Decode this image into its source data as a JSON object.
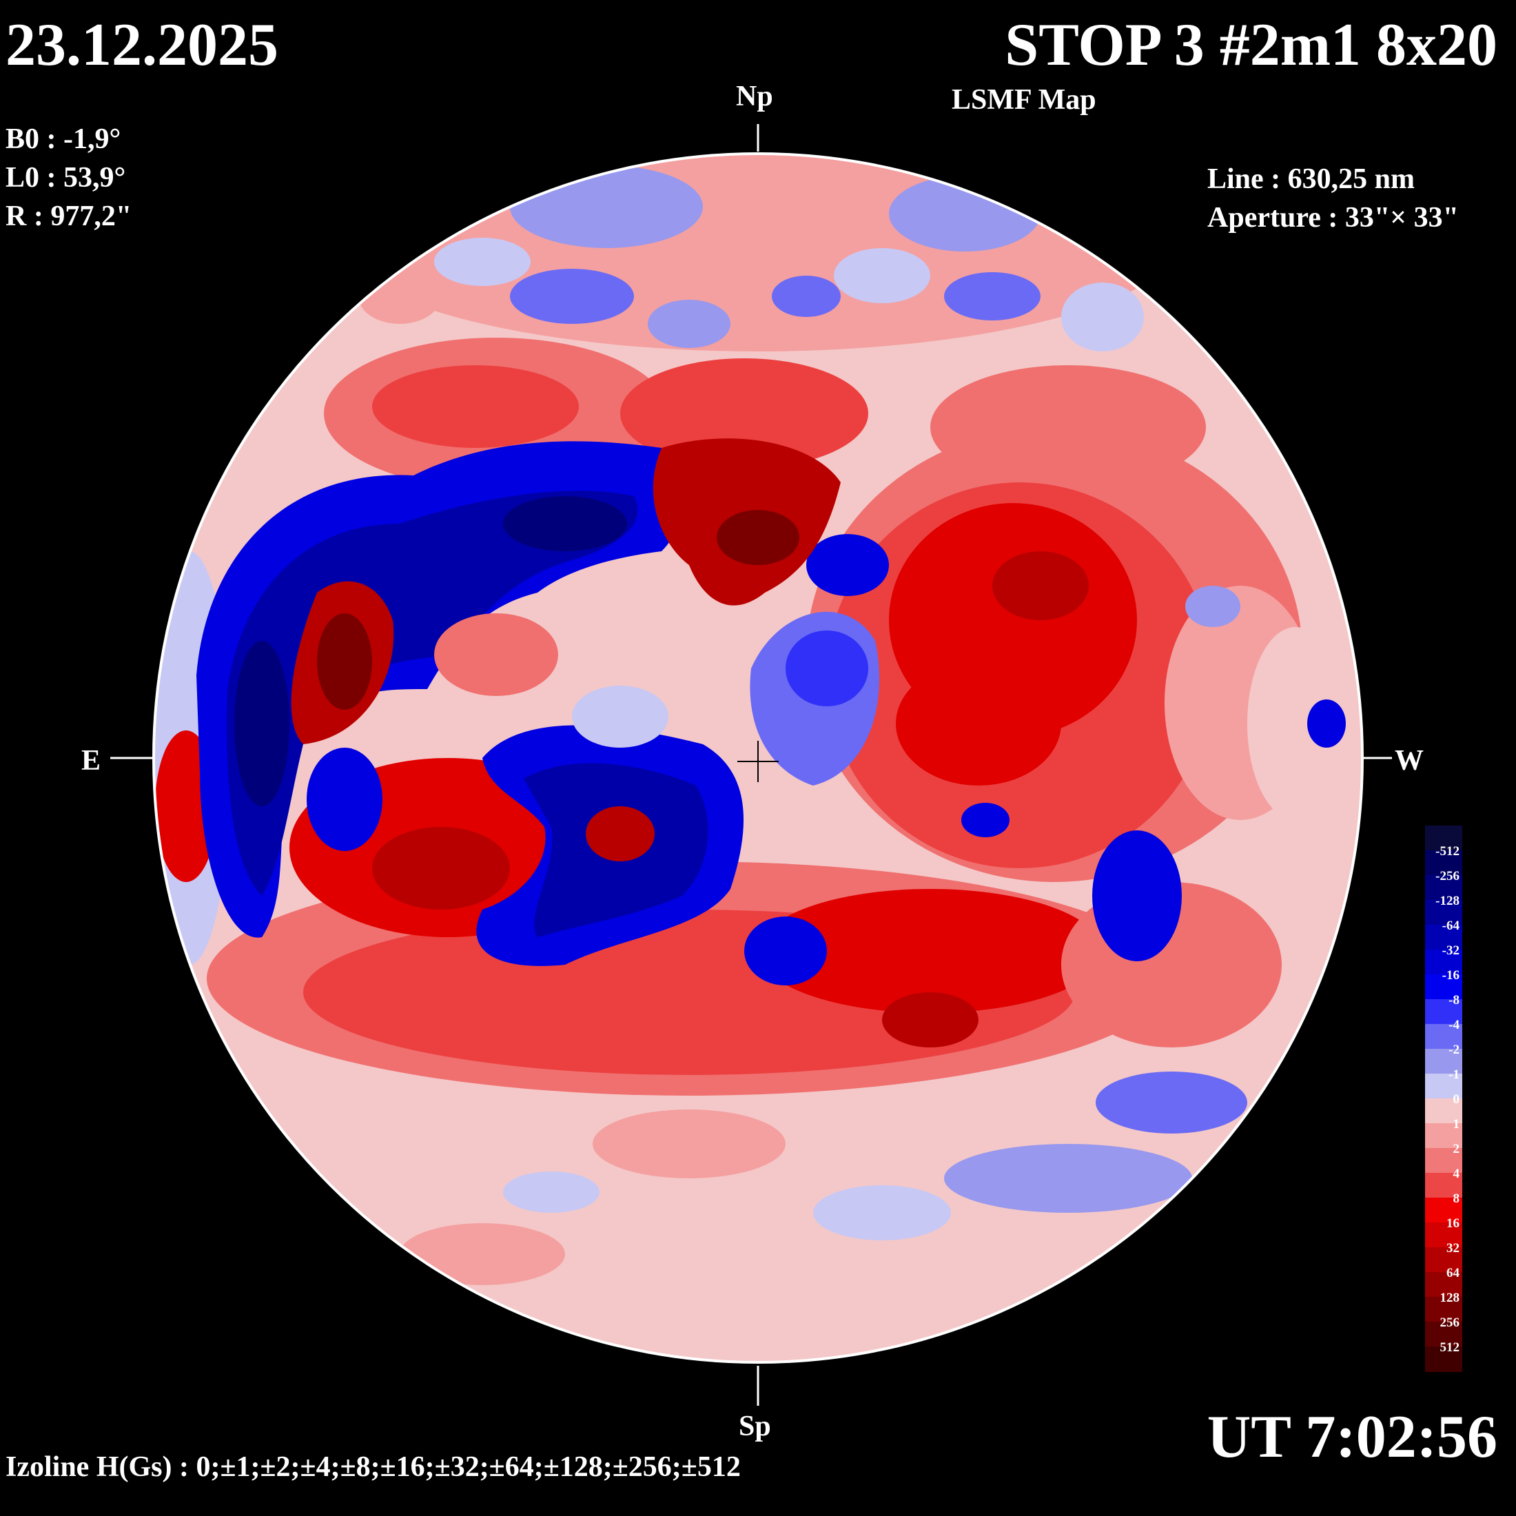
{
  "header": {
    "date": "23.12.2025",
    "title": "STOP 3 #2m1 8x20",
    "subtitle": "LSMF  Map"
  },
  "params": {
    "b0": "B0 : -1,9°",
    "l0": "L0 : 53,9°",
    "r": "R  : 977,2\""
  },
  "instrument": {
    "line": "Line :  630,25 nm",
    "aperture": "Aperture : 33\"× 33\""
  },
  "directions": {
    "north": "Np",
    "south": "Sp",
    "east": "E",
    "west": "W"
  },
  "time": "UT 7:02:56",
  "isolines": "Izoline H(Gs) : 0;±1;±2;±4;±8;±16;±32;±64;±128;±256;±512",
  "colorbar": {
    "labels": [
      "-512",
      "-256",
      "-128",
      "-64",
      "-32",
      "-16",
      "-8",
      "-4",
      "-2",
      "-1",
      "0",
      "1",
      "2",
      "4",
      "8",
      "16",
      "32",
      "64",
      "128",
      "256",
      "512"
    ],
    "colors": [
      "#0a0a3a",
      "#000060",
      "#00007c",
      "#000096",
      "#0000b4",
      "#0000d2",
      "#0000f0",
      "#3030f8",
      "#6a6af4",
      "#9898ee",
      "#c8c8f4",
      "#f4c8c8",
      "#f4a0a0",
      "#f07878",
      "#ec4646",
      "#f00000",
      "#d20000",
      "#b40000",
      "#960000",
      "#780000",
      "#5a0000",
      "#400000"
    ]
  },
  "palette": {
    "neg1": "#c8c8f4",
    "neg2": "#9898ee",
    "neg3": "#6a6af4",
    "neg4": "#3030f8",
    "neg5": "#0000e0",
    "neg6": "#0000a8",
    "neg7": "#00007a",
    "pos1": "#f4c8c8",
    "pos2": "#f4a0a0",
    "pos3": "#f07070",
    "pos4": "#ec4040",
    "pos5": "#e00000",
    "pos6": "#b80000",
    "pos7": "#7a0000"
  }
}
